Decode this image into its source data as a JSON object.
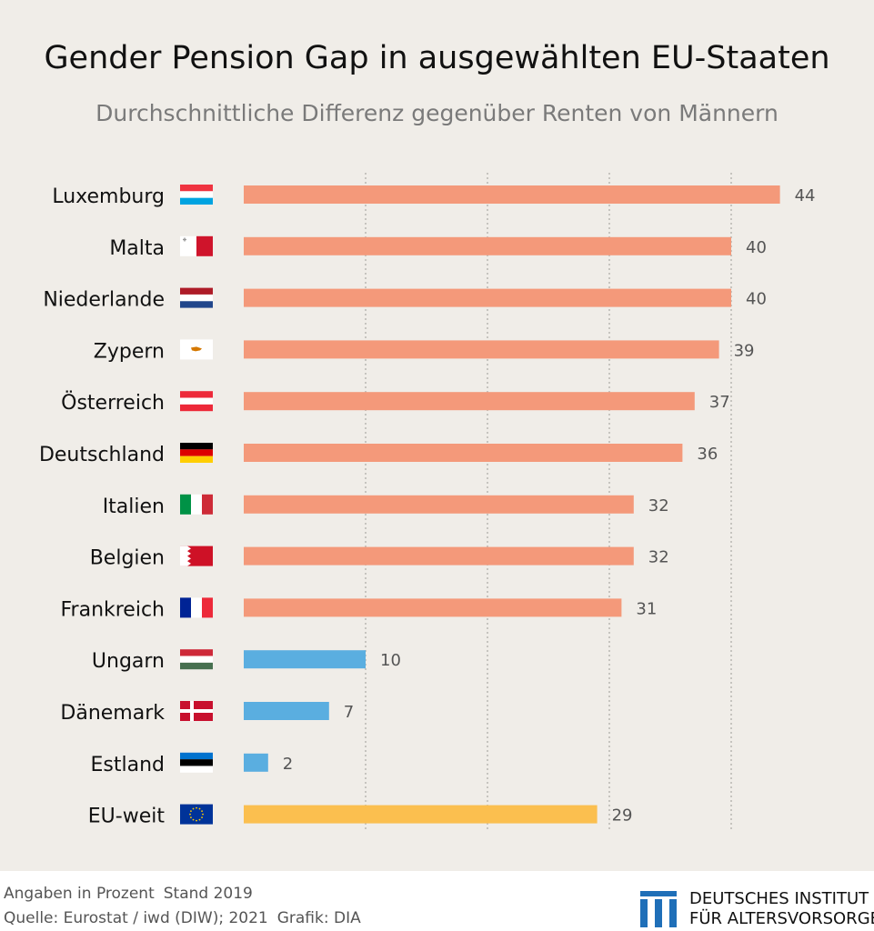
{
  "header": {
    "title": "Gender Pension Gap in ausgewählten EU-Staaten",
    "subtitle": "Durchschnittliche Differenz gegenüber Renten von Männern"
  },
  "chart_data": {
    "type": "bar",
    "orientation": "horizontal",
    "title": "Gender Pension Gap in ausgewählten EU-Staaten",
    "subtitle": "Durchschnittliche Differenz gegenüber Renten von Männern",
    "categories": [
      "Luxemburg",
      "Malta",
      "Niederlande",
      "Zypern",
      "Österreich",
      "Deutschland",
      "Italien",
      "Belgien",
      "Frankreich",
      "Ungarn",
      "Dänemark",
      "Estland",
      "EU-weit"
    ],
    "values": [
      44,
      40,
      40,
      39,
      37,
      36,
      32,
      32,
      31,
      10,
      7,
      2,
      29
    ],
    "bar_colors": [
      "#f4997a",
      "#f4997a",
      "#f4997a",
      "#f4997a",
      "#f4997a",
      "#f4997a",
      "#f4997a",
      "#f4997a",
      "#f4997a",
      "#5aaee0",
      "#5aaee0",
      "#5aaee0",
      "#fbbf4f"
    ],
    "flags": [
      "luxembourg-flag-icon",
      "malta-flag-icon",
      "netherlands-flag-icon",
      "cyprus-flag-icon",
      "austria-flag-icon",
      "germany-flag-icon",
      "italy-flag-icon",
      "bahrain-style-belgium-flag-icon",
      "france-flag-icon",
      "hungary-flag-icon",
      "denmark-flag-icon",
      "estonia-flag-icon",
      "eu-flag-icon"
    ],
    "xlim": [
      0,
      44
    ],
    "grid": "vertical-dotted",
    "gridlines": [
      10,
      20,
      30,
      40
    ],
    "data_labels": true,
    "xlabel": "",
    "ylabel": ""
  },
  "footer": {
    "note": "Angaben in Prozent",
    "stand": "Stand 2019",
    "source": "Quelle: Eurostat / iwd (DIW); 2021",
    "graphic": "Grafik: DIA"
  },
  "logo": {
    "line1": "DEUTSCHES INSTITUT",
    "line2": "FÜR ALTERSVORSORGE",
    "mark_color": "#1f6fb8"
  }
}
